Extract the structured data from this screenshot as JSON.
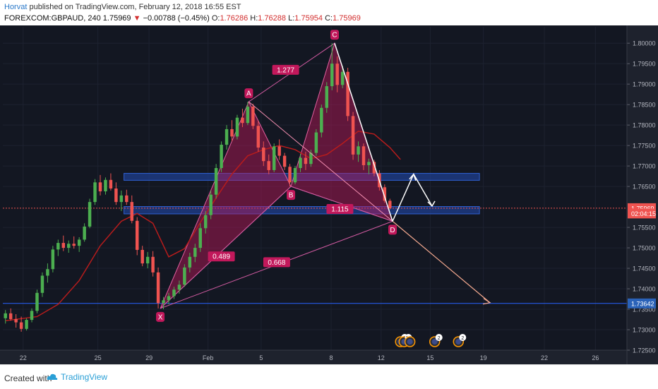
{
  "header": {
    "author": "Horvat",
    "published": "published on TradingView.com, February 12, 2018 16:55 EST",
    "symbol": "FOREXCOM:GBPAUD, 240",
    "last": "1.75969",
    "change": "−0.00788 (−0.45%)",
    "o_label": "O:",
    "o": "1.76286",
    "h_label": "H:",
    "h": "1.76288",
    "l_label": "L:",
    "l": "1.75954",
    "c_label": "C:",
    "c": "1.75969"
  },
  "footer": {
    "created": "Created with",
    "brand": "TradingView"
  },
  "colors": {
    "background": "#131722",
    "bull": "#4caf50",
    "bear": "#ef5350",
    "pattern": "#c2185b",
    "zone": "#1f3f8f",
    "ma": "#b71c1c",
    "axis_bg": "#1e222d"
  },
  "chart_data": {
    "type": "candlestick",
    "symbol": "FOREXCOM:GBPAUD",
    "timeframe": "240",
    "x_ticks": [
      "22",
      "25",
      "29",
      "Feb",
      "5",
      "8",
      "12",
      "15",
      "19",
      "22",
      "26"
    ],
    "y_ticks": [
      "1.80000",
      "1.79500",
      "1.79000",
      "1.78500",
      "1.78000",
      "1.77500",
      "1.77000",
      "1.76500",
      "1.75500",
      "1.75000",
      "1.74500",
      "1.74000",
      "1.73500",
      "1.73000",
      "1.72500"
    ],
    "ylim": [
      1.725,
      1.804
    ],
    "price_labels": [
      {
        "value": "1.75969",
        "y": 1.75969,
        "color": "#ef5350"
      },
      {
        "value": "02:04:15",
        "y": 1.7584,
        "color": "#ef5350"
      },
      {
        "value": "1.73642",
        "y": 1.73642,
        "color": "#2a62b8"
      }
    ],
    "harmonic_points": [
      {
        "label": "X",
        "t": 29.4,
        "price": 1.7352
      },
      {
        "label": "A",
        "t": 46.2,
        "price": 1.7857
      },
      {
        "label": "B",
        "t": 54.2,
        "price": 1.765
      },
      {
        "label": "C",
        "t": 62.5,
        "price": 1.8
      },
      {
        "label": "D",
        "t": 73.5,
        "price": 1.7565
      }
    ],
    "ratios": [
      {
        "value": "1.277",
        "t": 53.2,
        "price": 1.7935
      },
      {
        "value": "0.489",
        "t": 41.0,
        "price": 1.7479
      },
      {
        "value": "1.115",
        "t": 63.5,
        "price": 1.7595
      },
      {
        "value": "0.668",
        "t": 51.5,
        "price": 1.7465
      }
    ],
    "zones": [
      {
        "top": 1.7682,
        "bottom": 1.7665
      },
      {
        "top": 1.7601,
        "bottom": 1.7583
      }
    ],
    "horizontal_line": 1.73642,
    "dashed_line": 1.75969,
    "ma": [
      [
        0,
        1.7322
      ],
      [
        6,
        1.7332
      ],
      [
        10,
        1.7362
      ],
      [
        14,
        1.742
      ],
      [
        18,
        1.7505
      ],
      [
        22,
        1.7565
      ],
      [
        25,
        1.7584
      ],
      [
        28,
        1.756
      ],
      [
        31,
        1.7478
      ],
      [
        34,
        1.7498
      ],
      [
        37,
        1.7562
      ],
      [
        40,
        1.7622
      ],
      [
        43,
        1.768
      ],
      [
        46,
        1.7725
      ],
      [
        49,
        1.774
      ],
      [
        52,
        1.775
      ],
      [
        55,
        1.774
      ],
      [
        58,
        1.7718
      ],
      [
        61,
        1.7728
      ],
      [
        64,
        1.7755
      ],
      [
        67,
        1.7785
      ],
      [
        70,
        1.7778
      ],
      [
        73,
        1.7745
      ],
      [
        75,
        1.7716
      ]
    ],
    "candles": [
      [
        1.7328,
        1.7348,
        1.7315,
        1.734
      ],
      [
        1.734,
        1.7352,
        1.7322,
        1.7326
      ],
      [
        1.7326,
        1.7338,
        1.7305,
        1.7318
      ],
      [
        1.7318,
        1.7332,
        1.7295,
        1.7302
      ],
      [
        1.7302,
        1.7328,
        1.7298,
        1.7324
      ],
      [
        1.7324,
        1.7352,
        1.7318,
        1.7346
      ],
      [
        1.7346,
        1.7398,
        1.734,
        1.739
      ],
      [
        1.739,
        1.744,
        1.738,
        1.7432
      ],
      [
        1.7432,
        1.7462,
        1.7415,
        1.7448
      ],
      [
        1.7448,
        1.7505,
        1.744,
        1.7496
      ],
      [
        1.7496,
        1.752,
        1.748,
        1.7512
      ],
      [
        1.7512,
        1.753,
        1.7492,
        1.75
      ],
      [
        1.75,
        1.7518,
        1.7488,
        1.751
      ],
      [
        1.751,
        1.7528,
        1.7498,
        1.7505
      ],
      [
        1.7505,
        1.7526,
        1.749,
        1.752
      ],
      [
        1.752,
        1.756,
        1.7515,
        1.7552
      ],
      [
        1.7552,
        1.762,
        1.7548,
        1.7612
      ],
      [
        1.7612,
        1.7668,
        1.7605,
        1.766
      ],
      [
        1.766,
        1.7678,
        1.7628,
        1.7638
      ],
      [
        1.7638,
        1.7672,
        1.763,
        1.7666
      ],
      [
        1.7666,
        1.7682,
        1.764,
        1.7645
      ],
      [
        1.7645,
        1.766,
        1.7605,
        1.7612
      ],
      [
        1.7612,
        1.764,
        1.759,
        1.7628
      ],
      [
        1.7628,
        1.7642,
        1.7605,
        1.7612
      ],
      [
        1.7612,
        1.7628,
        1.756,
        1.7566
      ],
      [
        1.7566,
        1.7575,
        1.7482,
        1.7495
      ],
      [
        1.7495,
        1.7505,
        1.7455,
        1.7462
      ],
      [
        1.7462,
        1.749,
        1.745,
        1.7478
      ],
      [
        1.7478,
        1.7492,
        1.743,
        1.744
      ],
      [
        1.744,
        1.7452,
        1.7352,
        1.7365
      ],
      [
        1.7365,
        1.738,
        1.735,
        1.7372
      ],
      [
        1.7372,
        1.739,
        1.7362,
        1.7382
      ],
      [
        1.7382,
        1.7405,
        1.7375,
        1.7398
      ],
      [
        1.7398,
        1.742,
        1.7388,
        1.741
      ],
      [
        1.741,
        1.746,
        1.7405,
        1.7452
      ],
      [
        1.7452,
        1.7488,
        1.744,
        1.7478
      ],
      [
        1.7478,
        1.751,
        1.7465,
        1.75
      ],
      [
        1.75,
        1.756,
        1.749,
        1.7548
      ],
      [
        1.7548,
        1.759,
        1.7535,
        1.758
      ],
      [
        1.758,
        1.764,
        1.757,
        1.763
      ],
      [
        1.763,
        1.7705,
        1.762,
        1.7695
      ],
      [
        1.7695,
        1.776,
        1.7685,
        1.7752
      ],
      [
        1.7752,
        1.78,
        1.774,
        1.779
      ],
      [
        1.779,
        1.7812,
        1.776,
        1.7772
      ],
      [
        1.7772,
        1.7825,
        1.7765,
        1.7818
      ],
      [
        1.7818,
        1.784,
        1.7795,
        1.7805
      ],
      [
        1.7805,
        1.7857,
        1.78,
        1.7845
      ],
      [
        1.7845,
        1.7852,
        1.779,
        1.7798
      ],
      [
        1.7798,
        1.781,
        1.7735,
        1.7745
      ],
      [
        1.7745,
        1.776,
        1.77,
        1.7712
      ],
      [
        1.7712,
        1.7728,
        1.768,
        1.769
      ],
      [
        1.769,
        1.7755,
        1.7685,
        1.7748
      ],
      [
        1.7748,
        1.7765,
        1.7715,
        1.7725
      ],
      [
        1.7725,
        1.7732,
        1.769,
        1.7698
      ],
      [
        1.7698,
        1.7705,
        1.765,
        1.766
      ],
      [
        1.766,
        1.77,
        1.7655,
        1.7695
      ],
      [
        1.7695,
        1.773,
        1.7685,
        1.772
      ],
      [
        1.772,
        1.7735,
        1.769,
        1.7705
      ],
      [
        1.7705,
        1.774,
        1.7698,
        1.7732
      ],
      [
        1.7732,
        1.779,
        1.7725,
        1.7782
      ],
      [
        1.7782,
        1.785,
        1.777,
        1.7842
      ],
      [
        1.7842,
        1.7905,
        1.783,
        1.7895
      ],
      [
        1.7895,
        1.8,
        1.7885,
        1.795
      ],
      [
        1.795,
        1.7968,
        1.788,
        1.7898
      ],
      [
        1.7898,
        1.7945,
        1.789,
        1.793
      ],
      [
        1.793,
        1.794,
        1.781,
        1.7822
      ],
      [
        1.7822,
        1.7832,
        1.7715,
        1.7728
      ],
      [
        1.7728,
        1.776,
        1.771,
        1.7748
      ],
      [
        1.7748,
        1.7755,
        1.769,
        1.7702
      ],
      [
        1.7702,
        1.7718,
        1.768,
        1.771
      ],
      [
        1.771,
        1.7715,
        1.7675,
        1.7682
      ],
      [
        1.7682,
        1.769,
        1.764,
        1.7648
      ],
      [
        1.7648,
        1.7655,
        1.761,
        1.7615
      ],
      [
        1.7615,
        1.762,
        1.7594,
        1.7597
      ]
    ],
    "forecast_path": [
      {
        "t": 73.5,
        "price": 1.7565
      },
      {
        "t": 77.5,
        "price": 1.768
      },
      {
        "t": 81.0,
        "price": 1.7602
      }
    ],
    "projection": {
      "from": {
        "t": 73.5,
        "price": 1.7565
      },
      "to": {
        "t": 92.0,
        "price": 1.7366
      }
    },
    "event_badges": [
      {
        "count": "2",
        "t": 75.0
      },
      {
        "count": "14",
        "t": 75.7
      },
      {
        "count": "",
        "t": 76.8
      },
      {
        "count": "2",
        "t": 81.5
      },
      {
        "count": "2",
        "t": 86.0
      }
    ]
  }
}
